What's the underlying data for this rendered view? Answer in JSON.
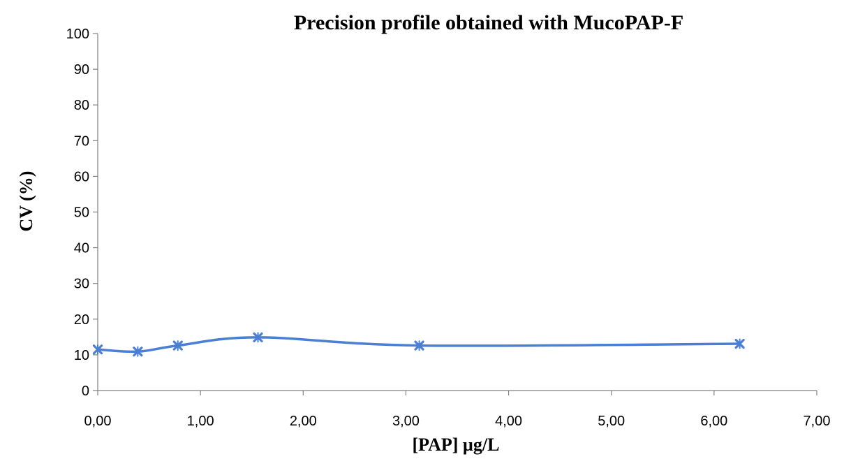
{
  "chart_data": {
    "type": "line",
    "title": "Precision profile obtained with MucoPAP-F",
    "xlabel": "[PAP] µg/L",
    "ylabel": "CV (%)",
    "xlim": [
      0,
      7
    ],
    "ylim": [
      0,
      100
    ],
    "x_ticks": [
      "0,00",
      "1,00",
      "2,00",
      "3,00",
      "4,00",
      "5,00",
      "6,00",
      "7,00"
    ],
    "y_ticks": [
      "0",
      "10",
      "20",
      "30",
      "40",
      "50",
      "60",
      "70",
      "80",
      "90",
      "100"
    ],
    "grid": false,
    "smooth": true,
    "marker": "x",
    "series": [
      {
        "color": "#4a7fd4",
        "x": [
          0.0,
          0.39,
          0.78,
          1.56,
          3.13,
          6.25
        ],
        "y": [
          11.5,
          10.9,
          12.6,
          14.9,
          12.6,
          13.1
        ]
      }
    ]
  }
}
